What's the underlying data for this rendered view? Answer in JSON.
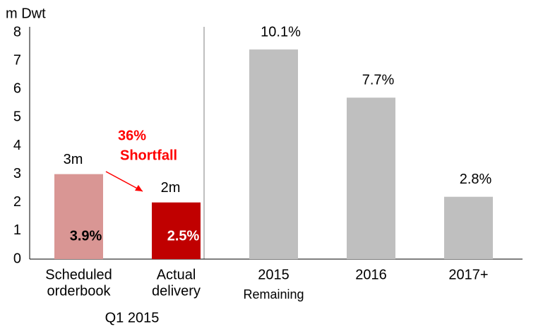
{
  "chart_data": {
    "type": "bar",
    "y_axis_label": "m Dwt",
    "categories": [
      [
        "Scheduled",
        "orderbook"
      ],
      [
        "Actual",
        "delivery"
      ],
      [
        "2015",
        "Remaining"
      ],
      [
        "2016"
      ],
      [
        "2017+"
      ]
    ],
    "group_label": "Q1 2015",
    "values": [
      3.0,
      2.0,
      7.4,
      5.7,
      2.2
    ],
    "value_labels": [
      "3m",
      "2m",
      null,
      null,
      null
    ],
    "share_labels": [
      "3.9%",
      "2.5%",
      "10.1%",
      "7.7%",
      "2.8%"
    ],
    "colors": [
      "#d99694",
      "#c00000",
      "#bfbfbf",
      "#bfbfbf",
      "#bfbfbf"
    ],
    "annotation": [
      "36%",
      "Shortfall"
    ],
    "annotation_color": "#ff0000",
    "ylim": [
      0,
      8
    ],
    "yticks": [
      0,
      1,
      2,
      3,
      4,
      5,
      6,
      7,
      8
    ],
    "grid": false
  }
}
